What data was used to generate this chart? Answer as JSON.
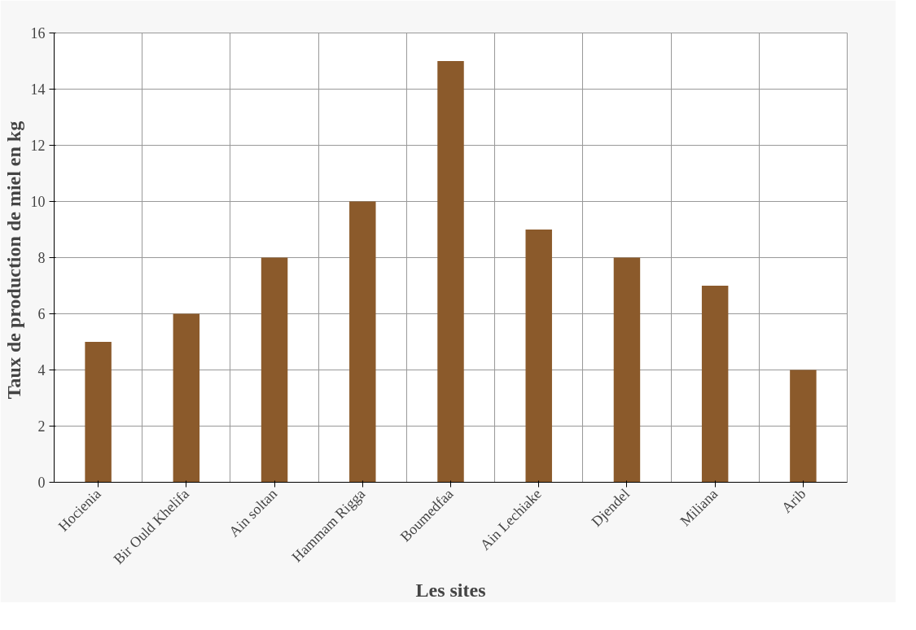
{
  "chart_data": {
    "type": "bar",
    "xlabel": "Les sites",
    "ylabel": "Taux  de production de miel en kg",
    "categories": [
      "Hocienia",
      "Bir Ould Khelifa",
      "Ain soltan",
      "Hammam Rigga",
      "Boumedfaa",
      "Ain Lechiake",
      "Djendel",
      "Miliana",
      "Arib"
    ],
    "values": [
      5,
      6,
      8,
      10,
      15,
      9,
      8,
      7,
      4
    ],
    "color": "#8b5a2b",
    "ylim": [
      0,
      16
    ],
    "yticks": [
      0,
      2,
      4,
      6,
      8,
      10,
      12,
      14,
      16
    ],
    "grid": true
  }
}
